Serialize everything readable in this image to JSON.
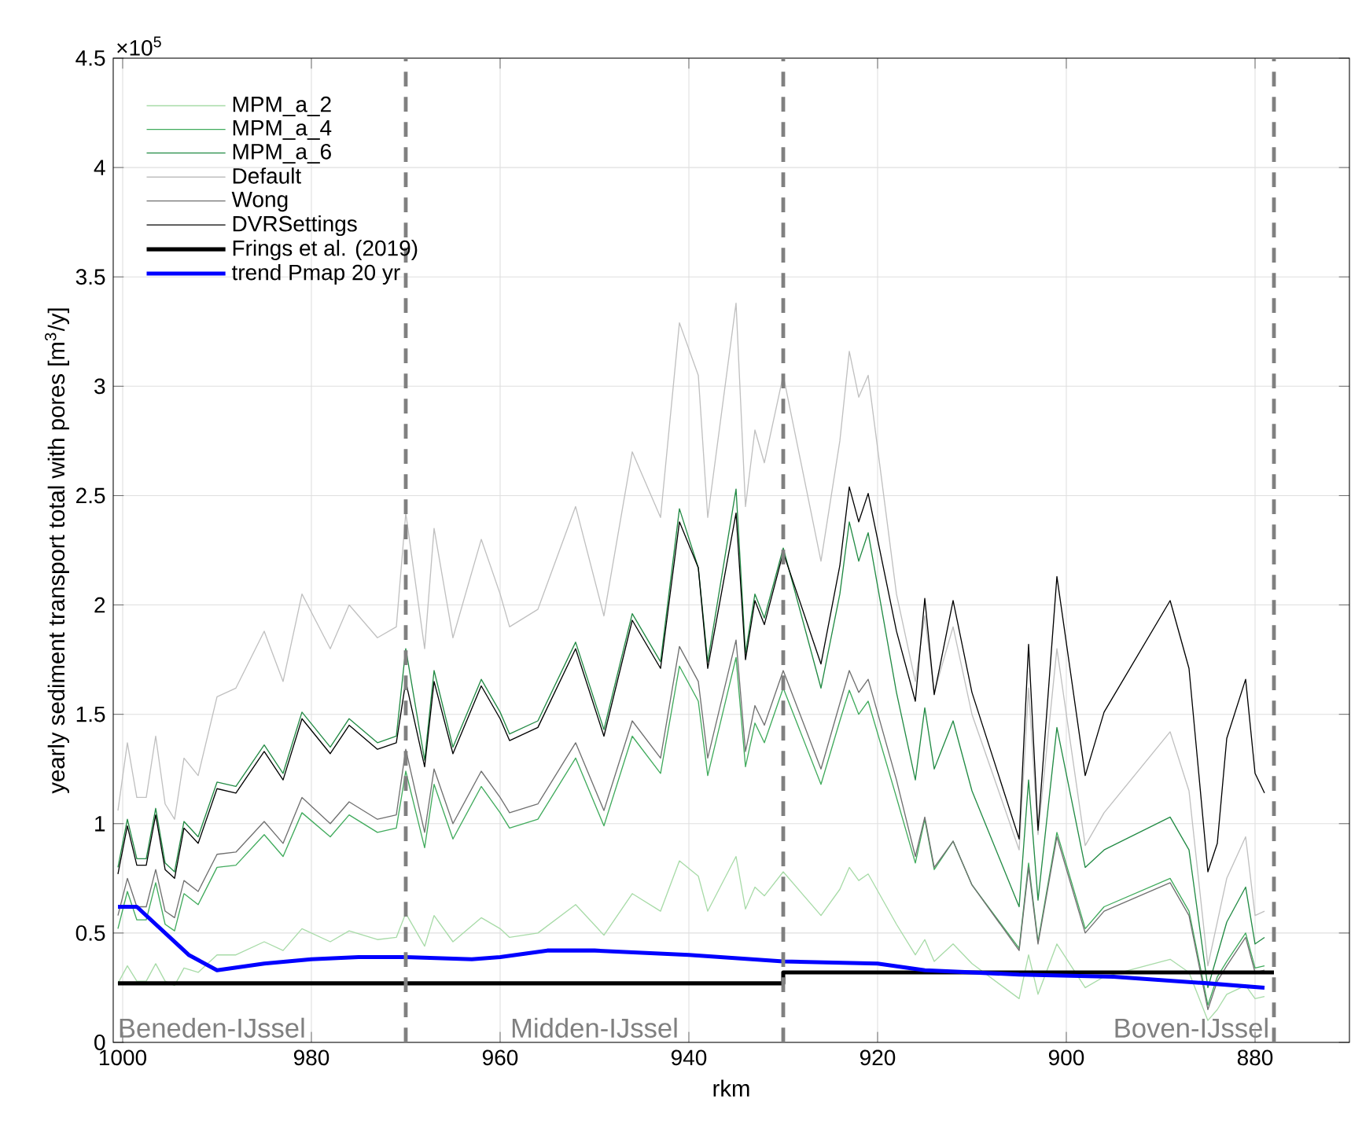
{
  "chart_data": {
    "type": "line",
    "xlabel": "rkm",
    "ylabel": "yearly sediment transport total with pores [m$^{3}$/y]",
    "x": [
      1000.5,
      999.5,
      998.5,
      997.5,
      996.5,
      995.5,
      994.5,
      993.5,
      992,
      990,
      988,
      985,
      983,
      981,
      978,
      976,
      973,
      971,
      970,
      968,
      967,
      965,
      962,
      960,
      959,
      956,
      952,
      949,
      946,
      943,
      941,
      939,
      938,
      935,
      934,
      933,
      932,
      930,
      926,
      924,
      923,
      922,
      921,
      918,
      916,
      915,
      914,
      912,
      910,
      905,
      904,
      903,
      901,
      898,
      896,
      889,
      887,
      885,
      884,
      883,
      881,
      880,
      879
    ],
    "series": [
      {
        "name": "MPM_a_2",
        "color": "#a8dba8",
        "values": [
          0.27,
          0.35,
          0.28,
          0.28,
          0.36,
          0.28,
          0.26,
          0.34,
          0.32,
          0.4,
          0.4,
          0.46,
          0.42,
          0.52,
          0.46,
          0.51,
          0.47,
          0.48,
          0.59,
          0.44,
          0.58,
          0.46,
          0.57,
          0.52,
          0.48,
          0.5,
          0.63,
          0.49,
          0.68,
          0.6,
          0.83,
          0.76,
          0.6,
          0.85,
          0.61,
          0.71,
          0.67,
          0.78,
          0.58,
          0.7,
          0.8,
          0.74,
          0.77,
          0.54,
          0.4,
          0.47,
          0.37,
          0.45,
          0.36,
          0.2,
          0.4,
          0.22,
          0.45,
          0.25,
          0.3,
          0.38,
          0.32,
          0.1,
          0.15,
          0.22,
          0.26,
          0.2,
          0.21
        ]
      },
      {
        "name": "MPM_a_4",
        "color": "#41ab5d",
        "values": [
          0.52,
          0.69,
          0.56,
          0.56,
          0.73,
          0.54,
          0.51,
          0.68,
          0.63,
          0.8,
          0.81,
          0.95,
          0.85,
          1.05,
          0.94,
          1.04,
          0.96,
          0.98,
          1.24,
          0.89,
          1.18,
          0.93,
          1.17,
          1.05,
          0.98,
          1.02,
          1.3,
          0.99,
          1.4,
          1.23,
          1.72,
          1.56,
          1.22,
          1.76,
          1.26,
          1.46,
          1.37,
          1.62,
          1.18,
          1.47,
          1.61,
          1.5,
          1.56,
          1.12,
          0.82,
          1.02,
          0.79,
          0.92,
          0.72,
          0.43,
          0.82,
          0.46,
          0.96,
          0.52,
          0.62,
          0.75,
          0.6,
          0.17,
          0.3,
          0.37,
          0.5,
          0.34,
          0.35
        ]
      },
      {
        "name": "MPM_a_6",
        "color": "#238b45",
        "values": [
          0.8,
          1.02,
          0.84,
          0.84,
          1.07,
          0.82,
          0.78,
          1.01,
          0.94,
          1.19,
          1.17,
          1.36,
          1.23,
          1.51,
          1.35,
          1.48,
          1.37,
          1.4,
          1.8,
          1.29,
          1.7,
          1.35,
          1.66,
          1.51,
          1.41,
          1.47,
          1.83,
          1.43,
          1.96,
          1.74,
          2.44,
          2.17,
          1.74,
          2.53,
          1.78,
          2.05,
          1.94,
          2.26,
          1.62,
          2.05,
          2.38,
          2.2,
          2.33,
          1.6,
          1.2,
          1.53,
          1.25,
          1.47,
          1.15,
          0.62,
          1.2,
          0.65,
          1.44,
          0.8,
          0.88,
          1.03,
          0.88,
          0.25,
          0.4,
          0.55,
          0.71,
          0.45,
          0.48
        ]
      },
      {
        "name": "Default",
        "color": "#c0c0c0",
        "values": [
          1.06,
          1.37,
          1.12,
          1.12,
          1.4,
          1.09,
          1.02,
          1.3,
          1.22,
          1.58,
          1.62,
          1.88,
          1.65,
          2.05,
          1.8,
          2.0,
          1.85,
          1.9,
          2.42,
          1.8,
          2.35,
          1.85,
          2.3,
          2.05,
          1.9,
          1.98,
          2.45,
          1.95,
          2.7,
          2.4,
          3.29,
          3.05,
          2.4,
          3.38,
          2.45,
          2.8,
          2.65,
          3.05,
          2.2,
          2.75,
          3.16,
          2.95,
          3.05,
          2.05,
          1.65,
          1.95,
          1.6,
          1.9,
          1.5,
          0.88,
          1.62,
          0.95,
          1.8,
          0.9,
          1.05,
          1.42,
          1.15,
          0.35,
          0.55,
          0.75,
          0.94,
          0.58,
          0.6
        ]
      },
      {
        "name": "Wong",
        "color": "#707070",
        "values": [
          0.58,
          0.75,
          0.62,
          0.62,
          0.79,
          0.6,
          0.57,
          0.74,
          0.69,
          0.86,
          0.87,
          1.01,
          0.91,
          1.12,
          1.0,
          1.1,
          1.02,
          1.04,
          1.34,
          0.96,
          1.25,
          1.0,
          1.24,
          1.12,
          1.05,
          1.09,
          1.37,
          1.06,
          1.47,
          1.3,
          1.81,
          1.65,
          1.3,
          1.84,
          1.33,
          1.54,
          1.45,
          1.7,
          1.25,
          1.55,
          1.7,
          1.6,
          1.66,
          1.2,
          0.85,
          1.03,
          0.8,
          0.92,
          0.72,
          0.42,
          0.8,
          0.45,
          0.94,
          0.5,
          0.6,
          0.73,
          0.58,
          0.15,
          0.28,
          0.35,
          0.48,
          0.32,
          0.33
        ]
      },
      {
        "name": "DVRSettings",
        "color": "#000000",
        "values": [
          0.77,
          0.99,
          0.81,
          0.81,
          1.04,
          0.79,
          0.75,
          0.98,
          0.91,
          1.16,
          1.14,
          1.33,
          1.2,
          1.48,
          1.32,
          1.45,
          1.34,
          1.37,
          1.65,
          1.26,
          1.65,
          1.32,
          1.63,
          1.48,
          1.38,
          1.44,
          1.8,
          1.4,
          1.93,
          1.71,
          2.38,
          2.17,
          1.71,
          2.42,
          1.75,
          2.02,
          1.91,
          2.24,
          1.73,
          2.18,
          2.54,
          2.38,
          2.51,
          1.88,
          1.56,
          2.03,
          1.59,
          2.02,
          1.6,
          0.93,
          1.82,
          0.97,
          2.13,
          1.22,
          1.51,
          2.02,
          1.71,
          0.78,
          0.91,
          1.39,
          1.66,
          1.23,
          1.14
        ]
      },
      {
        "name": "Frings et al. (2019)",
        "color": "#000000",
        "x": [
          1000.5,
          930,
          930,
          878
        ],
        "values": [
          0.27,
          0.27,
          0.32,
          0.32
        ]
      },
      {
        "name": "trend Pmap 20 yr",
        "color": "#0000ff",
        "x": [
          1000.5,
          998.5,
          993,
          990,
          985,
          980,
          975,
          970,
          963,
          960,
          955,
          950,
          940,
          930,
          920,
          915,
          905,
          895,
          885,
          879
        ],
        "values": [
          0.62,
          0.62,
          0.4,
          0.33,
          0.36,
          0.38,
          0.39,
          0.39,
          0.38,
          0.39,
          0.42,
          0.42,
          0.4,
          0.37,
          0.36,
          0.33,
          0.31,
          0.3,
          0.27,
          0.25
        ]
      }
    ],
    "xlim": [
      1001,
      870
    ],
    "xticks": [
      1000,
      980,
      960,
      940,
      920,
      900,
      880
    ],
    "ylim": [
      0,
      4.5
    ],
    "yticks": [
      0,
      0.5,
      1,
      1.5,
      2,
      2.5,
      3,
      3.5,
      4,
      4.5
    ],
    "grid": true,
    "legend": "top left",
    "ref_lines": [
      {
        "axis": "x",
        "value": 970,
        "color": "#808080",
        "line_style": "dashed"
      },
      {
        "axis": "x",
        "value": 930,
        "color": "#808080",
        "line_style": "dashed"
      },
      {
        "axis": "x",
        "value": 878,
        "color": "#808080",
        "line_style": "dashed"
      }
    ],
    "annotations": [
      "×10$^{5}$",
      "Beneden-IJssel",
      "Midden-IJssel",
      "Boven-IJssel"
    ]
  }
}
